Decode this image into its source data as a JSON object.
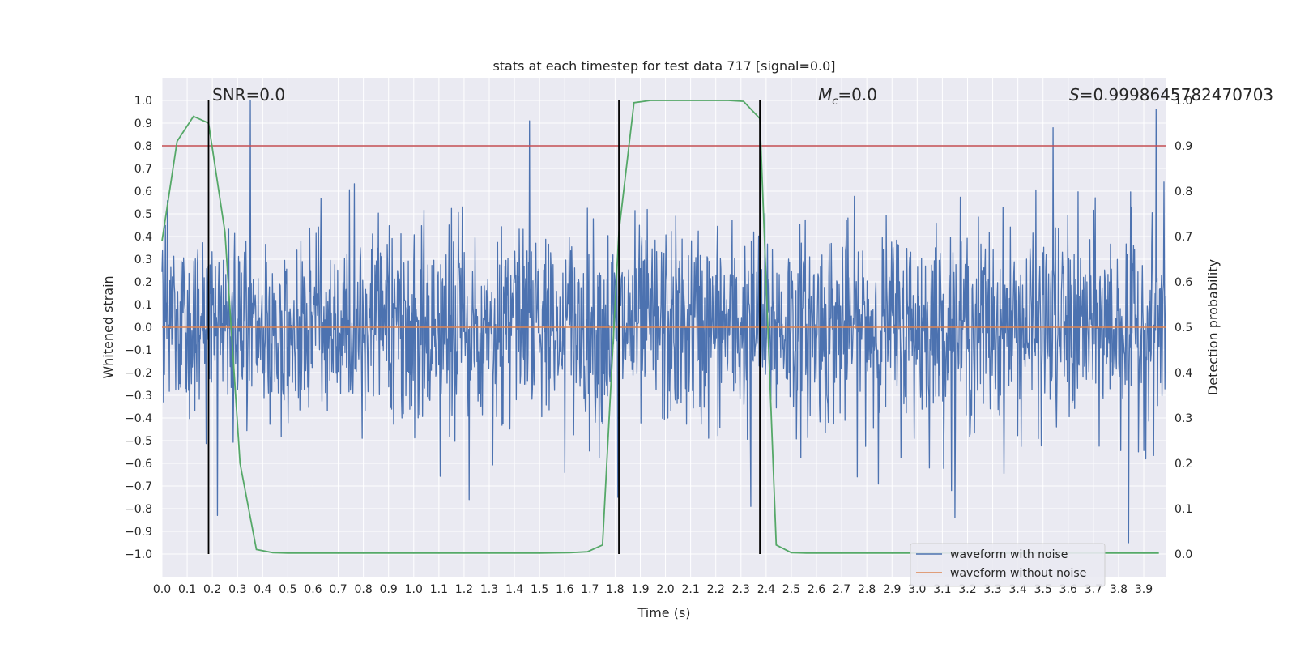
{
  "chart_data": {
    "type": "line",
    "title": "stats at each timestep for test data 717 [signal=0.0]",
    "xlabel": "Time (s)",
    "ylabel": "Whitened strain",
    "ylabel_right": "Detection probability",
    "xlim": [
      0.0,
      3.99
    ],
    "ylim": [
      -1.1,
      1.1
    ],
    "ylim_right": [
      -0.05,
      1.05
    ],
    "grid": true,
    "legend": "lower-right",
    "x_ticks": [
      0.0,
      0.1,
      0.2,
      0.3,
      0.4,
      0.5,
      0.6,
      0.7,
      0.8,
      0.9,
      1.0,
      1.1,
      1.2,
      1.3,
      1.4,
      1.5,
      1.6,
      1.7,
      1.8,
      1.9,
      2.0,
      2.1,
      2.2,
      2.3,
      2.4,
      2.5,
      2.6,
      2.7,
      2.8,
      2.9,
      3.0,
      3.1,
      3.2,
      3.3,
      3.4,
      3.5,
      3.6,
      3.7,
      3.8,
      3.9
    ],
    "y_ticks": [
      1.0,
      0.9,
      0.8,
      0.7,
      0.6,
      0.5,
      0.4,
      0.3,
      0.2,
      0.1,
      0.0,
      -0.1,
      -0.2,
      -0.3,
      -0.4,
      -0.5,
      -0.6,
      -0.7,
      -0.8,
      -0.9,
      -1.0
    ],
    "y_ticks_right": [
      1.0,
      0.9,
      0.8,
      0.7,
      0.6,
      0.5,
      0.4,
      0.3,
      0.2,
      0.1,
      0.0
    ],
    "annotations": {
      "snr": "SNR=0.0",
      "mc_symbol": "M",
      "mc_sub": "c",
      "mc_value": "=0.0",
      "s_symbol": "S",
      "s_value": "=0.9998645782470703"
    },
    "vertical_lines_x": [
      0.185,
      1.815,
      2.375
    ],
    "threshold_right": 0.9,
    "series": [
      {
        "name": "waveform with noise",
        "color": "#4c72b0",
        "noise_std": 0.22,
        "samples": 2048,
        "peaks": [
          [
            0.35,
            1.0
          ],
          [
            1.46,
            0.91
          ],
          [
            3.54,
            0.88
          ],
          [
            3.95,
            0.96
          ],
          [
            3.84,
            -0.95
          ],
          [
            0.22,
            -0.83
          ],
          [
            1.81,
            -0.75
          ],
          [
            1.22,
            -0.76
          ],
          [
            3.15,
            -0.84
          ],
          [
            2.34,
            -0.79
          ]
        ]
      },
      {
        "name": "waveform without noise",
        "color": "#dd8452",
        "value": 0.0
      },
      {
        "name": "detection probability",
        "color": "#55a868",
        "axis": "right",
        "x": [
          0.0,
          0.06,
          0.125,
          0.185,
          0.25,
          0.31,
          0.375,
          0.44,
          0.5,
          0.56,
          0.62,
          1.0,
          1.5,
          1.62,
          1.69,
          1.75,
          1.815,
          1.875,
          1.94,
          2.0,
          2.06,
          2.12,
          2.19,
          2.25,
          2.31,
          2.375,
          2.44,
          2.5,
          2.56,
          2.62,
          3.0,
          3.5,
          3.96
        ],
        "y": [
          0.69,
          0.91,
          0.965,
          0.95,
          0.71,
          0.2,
          0.01,
          0.003,
          0.002,
          0.002,
          0.002,
          0.002,
          0.002,
          0.003,
          0.005,
          0.02,
          0.71,
          0.995,
          1.0,
          1.0,
          1.0,
          1.0,
          1.0,
          1.0,
          0.998,
          0.96,
          0.02,
          0.003,
          0.002,
          0.002,
          0.002,
          0.002,
          0.002
        ]
      },
      {
        "name": "threshold",
        "color": "#c44e52",
        "axis": "right",
        "value": 0.9
      }
    ]
  }
}
